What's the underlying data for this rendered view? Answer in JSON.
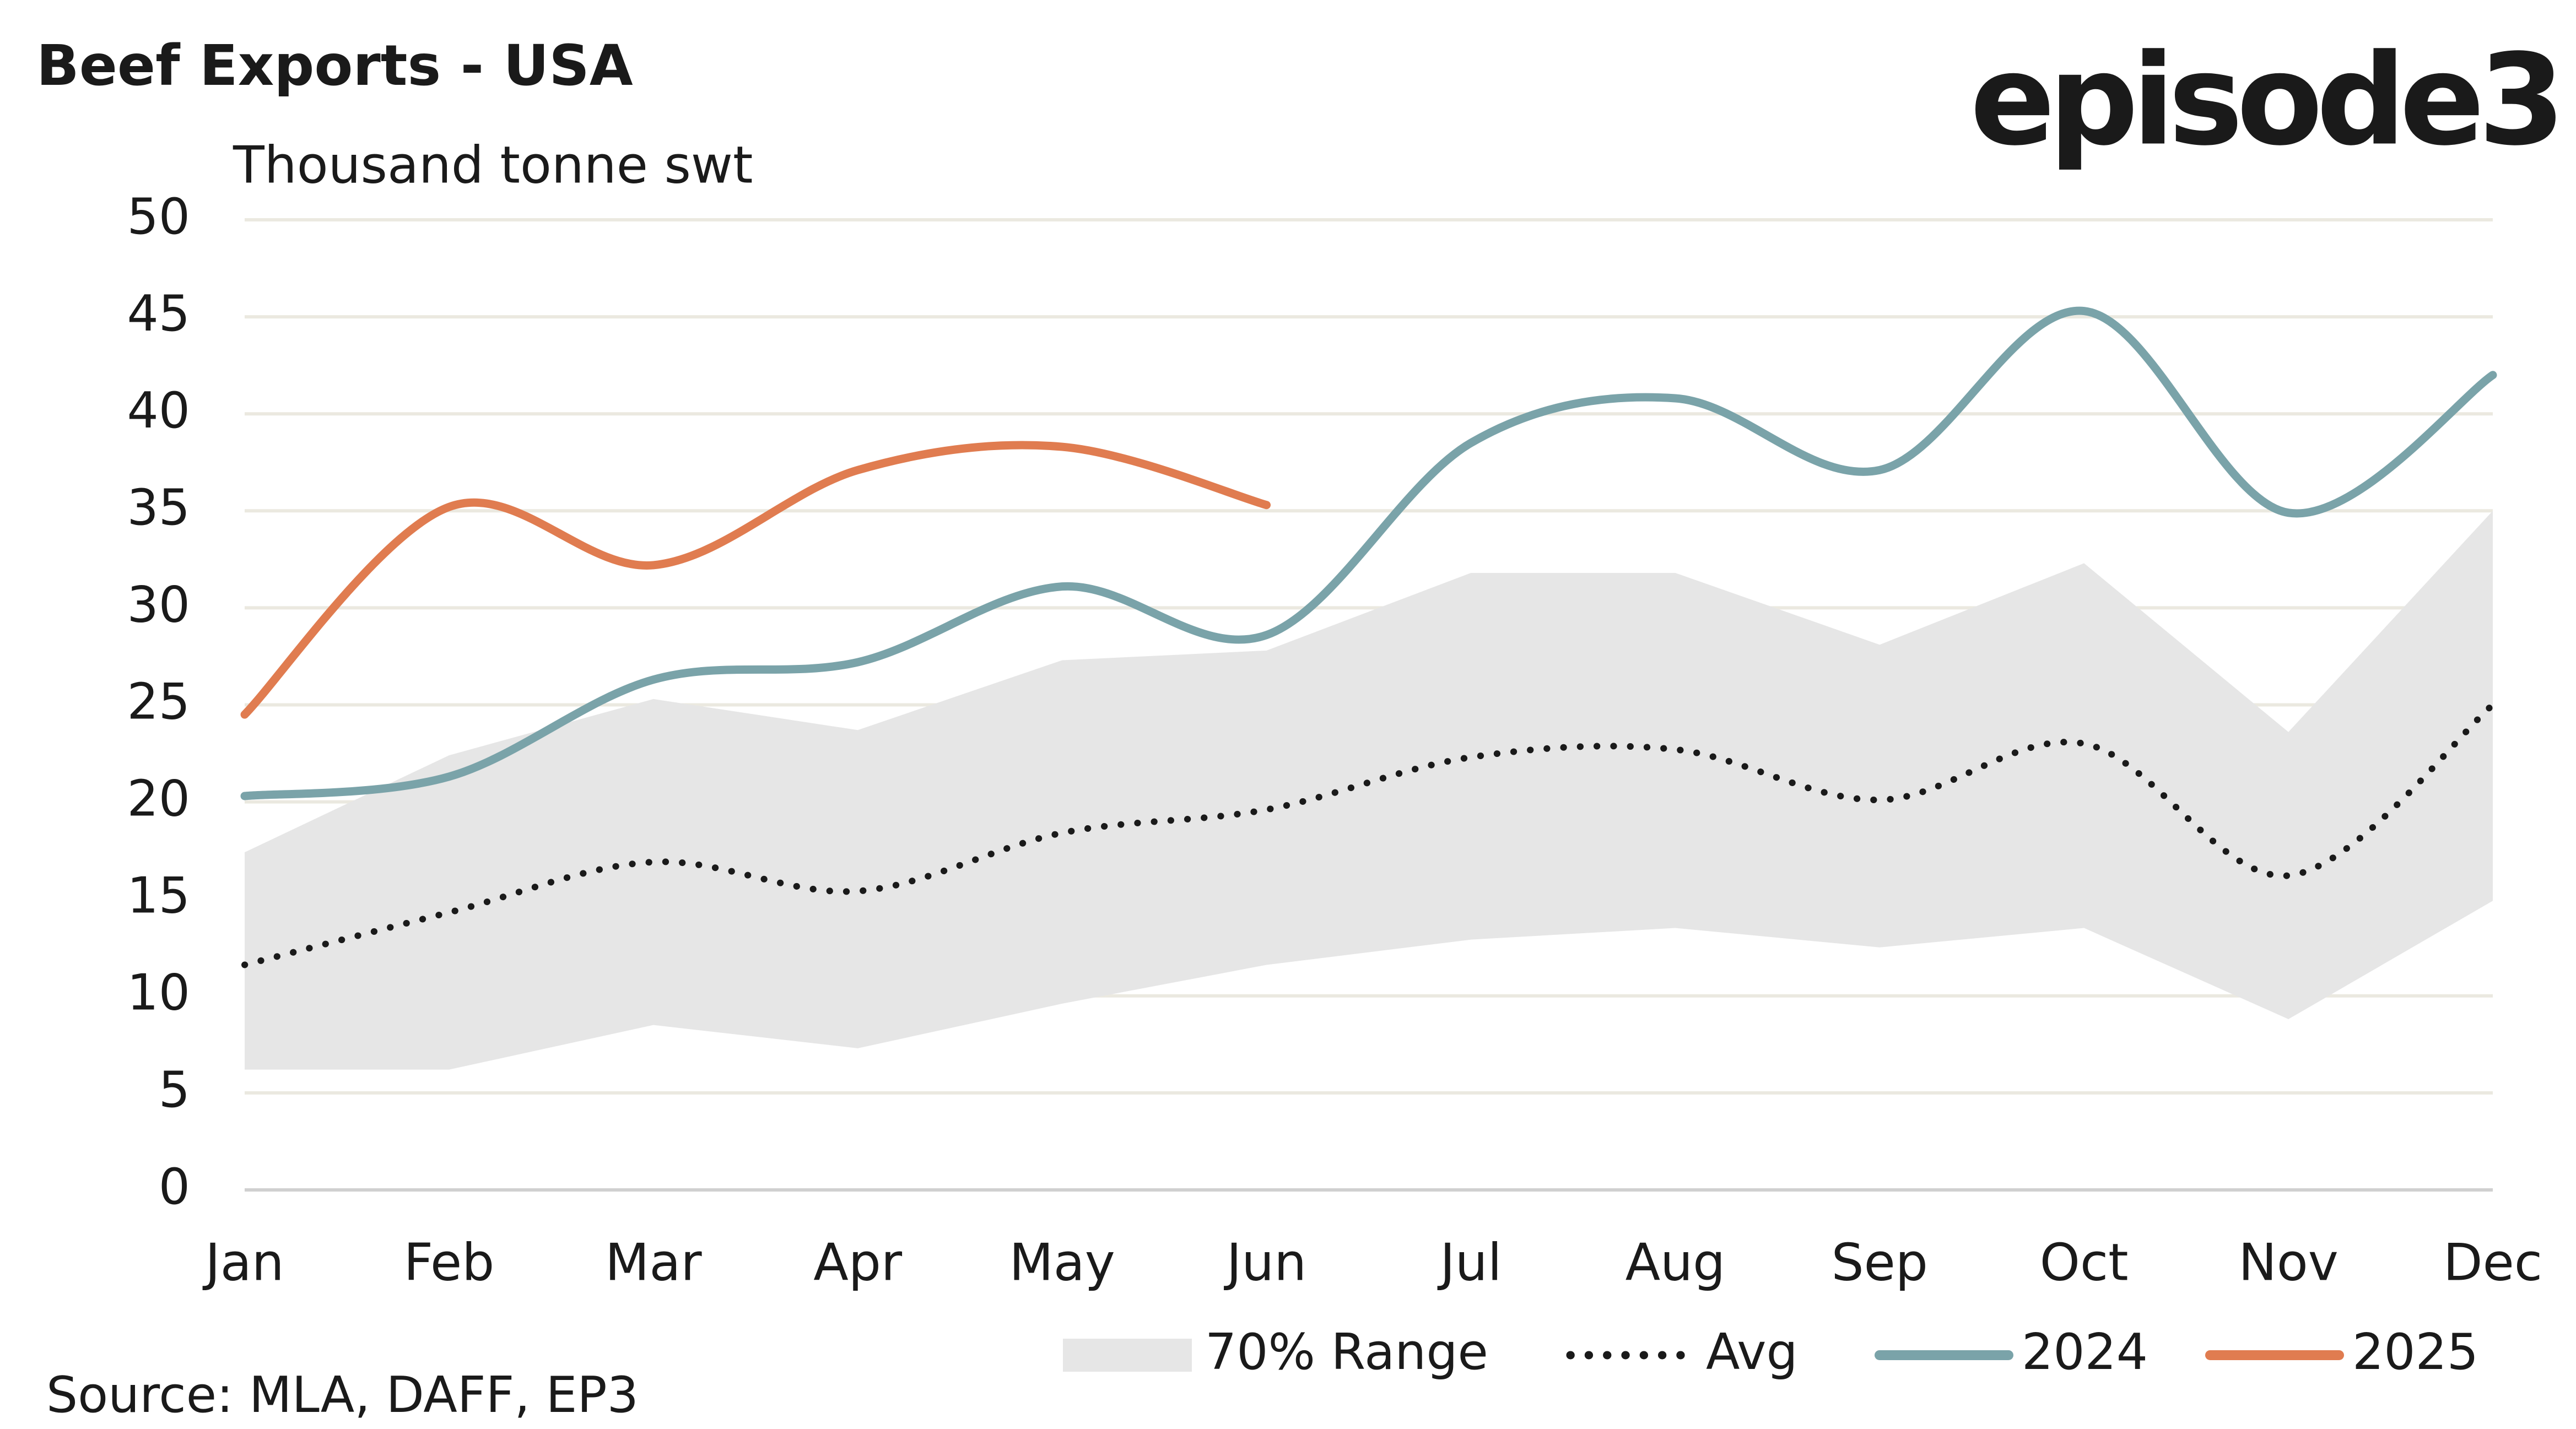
{
  "chart_data": {
    "type": "line",
    "title": "Beef Exports - USA",
    "subtitle": "Thousand tonne swt",
    "brand": "episode3",
    "source": "Source: MLA, DAFF, EP3",
    "categories": [
      "Jan",
      "Feb",
      "Mar",
      "Apr",
      "May",
      "Jun",
      "Jul",
      "Aug",
      "Sep",
      "Oct",
      "Nov",
      "Dec"
    ],
    "ylim": [
      0,
      50
    ],
    "yticks": [
      0,
      5,
      10,
      15,
      20,
      25,
      30,
      35,
      40,
      45,
      50
    ],
    "grid": true,
    "legend": "bottom",
    "series": [
      {
        "name": "70% Range",
        "type": "band",
        "color": "#e6e6e6",
        "upper": [
          17.4,
          22.4,
          25.3,
          23.7,
          27.3,
          27.8,
          31.8,
          31.8,
          28.1,
          32.3,
          23.6,
          35.0
        ],
        "lower": [
          6.2,
          6.2,
          8.5,
          7.3,
          9.6,
          11.6,
          12.9,
          13.5,
          12.5,
          13.5,
          8.8,
          14.9
        ]
      },
      {
        "name": "Avg",
        "type": "dotted",
        "color": "#1a1a1a",
        "values": [
          11.6,
          14.3,
          16.9,
          15.4,
          18.4,
          19.6,
          22.3,
          22.7,
          20.1,
          23.0,
          16.2,
          25.0
        ]
      },
      {
        "name": "2024",
        "type": "line",
        "color": "#7aa3a9",
        "values": [
          20.3,
          21.3,
          26.3,
          27.2,
          31.1,
          28.6,
          38.5,
          40.8,
          37.1,
          45.3,
          34.9,
          42.0
        ]
      },
      {
        "name": "2025",
        "type": "line",
        "color": "#e07c50",
        "values": [
          24.5,
          35.2,
          32.2,
          37.1,
          38.3,
          35.3,
          null,
          null,
          null,
          null,
          null,
          null
        ]
      }
    ]
  }
}
